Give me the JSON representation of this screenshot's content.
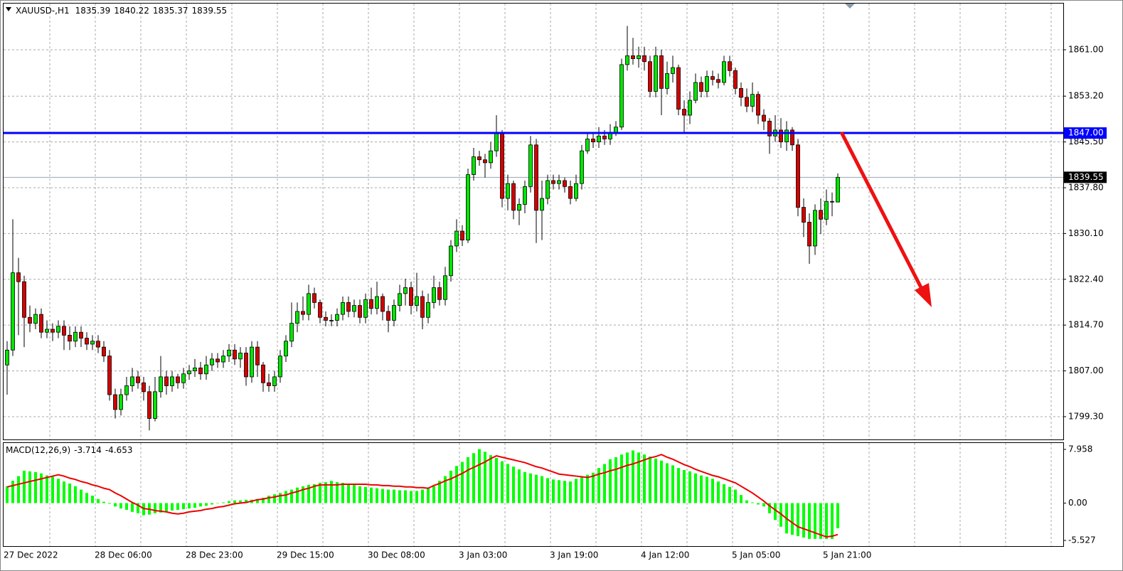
{
  "chart_data": [
    {
      "type": "candlestick",
      "title": "XAUUSD-,H1",
      "categories": [
        "27 Dec 2022",
        null,
        null,
        null,
        null,
        null,
        null,
        null,
        null,
        null,
        null,
        null,
        null,
        null,
        null,
        null,
        "28 Dec 06:00",
        null,
        null,
        null,
        null,
        null,
        null,
        null,
        null,
        null,
        null,
        null,
        null,
        null,
        null,
        null,
        "28 Dec 23:00",
        null,
        null,
        null,
        null,
        null,
        null,
        null,
        null,
        null,
        null,
        null,
        null,
        null,
        null,
        null,
        "29 Dec 15:00",
        null,
        null,
        null,
        null,
        null,
        null,
        null,
        null,
        null,
        null,
        null,
        null,
        null,
        null,
        null,
        "30 Dec 08:00",
        null,
        null,
        null,
        null,
        null,
        null,
        null,
        null,
        null,
        null,
        null,
        null,
        null,
        null,
        null,
        "3 Jan 03:00",
        null,
        null,
        null,
        null,
        null,
        null,
        null,
        null,
        null,
        null,
        null,
        null,
        null,
        null,
        null,
        "3 Jan 19:00",
        null,
        null,
        null,
        null,
        null,
        null,
        null,
        null,
        null,
        null,
        null,
        null,
        null,
        null,
        null,
        "4 Jan 12:00",
        null,
        null,
        null,
        null,
        null,
        null,
        null,
        null,
        null,
        null,
        null,
        null,
        null,
        null,
        null,
        "5 Jan 05:00",
        null,
        null,
        null,
        null,
        null,
        null,
        null,
        null,
        null,
        null,
        null,
        null,
        null,
        null,
        null,
        "5 Jan 21:00",
        null,
        null
      ],
      "open": [
        1808.0,
        1810.5,
        1823.5,
        1822.0,
        1816.0,
        1815.0,
        1816.5,
        1813.5,
        1814.0,
        1813.5,
        1814.5,
        1813.0,
        1812.0,
        1813.5,
        1812.5,
        1811.5,
        1812.0,
        1811.0,
        1809.5,
        1803.0,
        1800.5,
        1803.0,
        1804.5,
        1806.0,
        1805.0,
        1803.5,
        1799.0,
        1803.5,
        1806.0,
        1804.5,
        1806.0,
        1805.0,
        1806.5,
        1807.0,
        1807.5,
        1806.5,
        1808.0,
        1809.0,
        1808.5,
        1809.5,
        1810.5,
        1809.0,
        1810.0,
        1806.0,
        1811.0,
        1808.0,
        1805.0,
        1804.5,
        1806.0,
        1809.5,
        1812.0,
        1815.0,
        1817.0,
        1816.5,
        1820.0,
        1818.5,
        1816.0,
        1815.5,
        1815.5,
        1816.5,
        1818.5,
        1817.0,
        1818.0,
        1816.0,
        1819.0,
        1817.5,
        1819.5,
        1817.0,
        1815.5,
        1818.0,
        1820.0,
        1821.0,
        1818.0,
        1819.5,
        1816.0,
        1818.5,
        1821.0,
        1819.0,
        1823.0,
        1828.0,
        1830.5,
        1829.0,
        1840.0,
        1843.0,
        1842.5,
        1842.0,
        1844.0,
        1847.0,
        1836.0,
        1838.5,
        1834.0,
        1835.0,
        1838.0,
        1845.0,
        1834.0,
        1836.0,
        1839.0,
        1838.5,
        1839.0,
        1838.0,
        1836.0,
        1838.5,
        1844.0,
        1846.0,
        1845.5,
        1846.5,
        1846.0,
        1847.0,
        1848.0,
        1858.5,
        1860.0,
        1859.5,
        1860.0,
        1859.0,
        1854.0,
        1860.0,
        1854.5,
        1857.0,
        1858.0,
        1851.0,
        1850.0,
        1852.5,
        1855.5,
        1854.0,
        1856.5,
        1856.0,
        1855.5,
        1859.0,
        1857.5,
        1854.5,
        1853.0,
        1851.5,
        1853.5,
        1850.0,
        1849.0,
        1846.5,
        1847.5,
        1845.5,
        1847.5,
        1845.0,
        1834.5,
        1832.0,
        1828.0,
        1834.0,
        1832.5,
        1835.5,
        1835.39
      ],
      "high": [
        1812.0,
        1832.5,
        1826.0,
        1823.0,
        1818.0,
        1817.5,
        1817.5,
        1815.5,
        1815.0,
        1815.5,
        1815.5,
        1814.5,
        1814.5,
        1814.5,
        1813.5,
        1813.0,
        1813.0,
        1812.0,
        1810.5,
        1804.0,
        1804.0,
        1806.0,
        1807.5,
        1807.0,
        1806.0,
        1804.5,
        1806.0,
        1809.5,
        1807.0,
        1807.0,
        1806.5,
        1807.5,
        1808.0,
        1809.0,
        1808.5,
        1809.5,
        1810.0,
        1810.0,
        1810.5,
        1811.5,
        1811.5,
        1811.0,
        1811.0,
        1812.0,
        1812.0,
        1808.5,
        1806.5,
        1807.0,
        1810.5,
        1813.0,
        1818.5,
        1818.5,
        1819.5,
        1821.5,
        1821.0,
        1819.0,
        1817.0,
        1816.5,
        1817.5,
        1819.5,
        1819.5,
        1819.0,
        1819.0,
        1820.0,
        1821.0,
        1822.0,
        1820.0,
        1818.0,
        1819.0,
        1821.5,
        1822.5,
        1822.0,
        1823.5,
        1820.5,
        1820.0,
        1823.0,
        1822.0,
        1824.5,
        1829.0,
        1832.5,
        1831.5,
        1841.0,
        1844.5,
        1844.0,
        1843.5,
        1845.5,
        1850.0,
        1847.5,
        1840.0,
        1839.0,
        1836.0,
        1839.0,
        1846.5,
        1846.0,
        1839.0,
        1840.0,
        1840.0,
        1840.0,
        1839.5,
        1839.0,
        1840.0,
        1845.0,
        1847.0,
        1847.0,
        1848.0,
        1847.5,
        1848.5,
        1849.0,
        1859.5,
        1865.0,
        1863.0,
        1861.5,
        1861.5,
        1860.0,
        1861.5,
        1861.0,
        1859.0,
        1860.0,
        1858.5,
        1852.5,
        1854.0,
        1857.0,
        1856.5,
        1857.5,
        1857.5,
        1857.0,
        1860.0,
        1860.0,
        1858.0,
        1855.5,
        1854.5,
        1855.5,
        1854.0,
        1851.0,
        1849.5,
        1850.0,
        1849.5,
        1849.0,
        1848.0,
        1846.0,
        1836.0,
        1833.5,
        1835.0,
        1836.0,
        1837.5,
        1837.0,
        1840.22
      ],
      "low": [
        1803.0,
        1809.5,
        1813.0,
        1811.0,
        1813.5,
        1814.0,
        1812.5,
        1812.5,
        1812.0,
        1812.5,
        1810.5,
        1810.5,
        1811.0,
        1811.0,
        1810.5,
        1810.5,
        1810.0,
        1808.5,
        1802.0,
        1799.0,
        1799.5,
        1802.0,
        1803.5,
        1804.0,
        1802.0,
        1797.0,
        1798.5,
        1802.5,
        1803.0,
        1803.5,
        1804.0,
        1804.0,
        1805.5,
        1806.0,
        1805.5,
        1805.5,
        1807.0,
        1807.5,
        1807.5,
        1808.5,
        1808.0,
        1807.5,
        1804.5,
        1805.0,
        1806.0,
        1803.5,
        1803.5,
        1803.5,
        1805.0,
        1808.5,
        1811.0,
        1813.5,
        1815.5,
        1815.5,
        1817.5,
        1815.0,
        1814.5,
        1814.5,
        1814.5,
        1815.5,
        1816.0,
        1816.0,
        1815.0,
        1815.0,
        1816.5,
        1816.5,
        1815.5,
        1813.5,
        1814.5,
        1817.0,
        1818.0,
        1816.5,
        1817.0,
        1814.0,
        1815.0,
        1817.5,
        1818.0,
        1818.0,
        1822.0,
        1827.0,
        1828.0,
        1828.5,
        1839.0,
        1841.5,
        1839.5,
        1841.0,
        1843.0,
        1834.5,
        1834.0,
        1832.5,
        1831.5,
        1833.5,
        1837.0,
        1828.5,
        1829.0,
        1835.0,
        1837.5,
        1837.5,
        1837.0,
        1835.0,
        1835.5,
        1837.5,
        1843.5,
        1844.5,
        1844.5,
        1845.0,
        1845.0,
        1846.5,
        1847.5,
        1857.5,
        1858.5,
        1858.0,
        1857.5,
        1853.0,
        1853.0,
        1850.0,
        1853.5,
        1855.5,
        1850.0,
        1847.0,
        1848.5,
        1852.0,
        1853.0,
        1853.0,
        1855.0,
        1854.5,
        1855.0,
        1856.5,
        1853.5,
        1851.5,
        1850.5,
        1850.5,
        1848.5,
        1847.5,
        1843.5,
        1845.5,
        1844.5,
        1844.0,
        1844.0,
        1833.0,
        1829.5,
        1825.0,
        1826.5,
        1830.0,
        1831.5,
        1833.0,
        1835.37
      ],
      "close": [
        1810.5,
        1823.5,
        1822.0,
        1816.0,
        1815.0,
        1816.5,
        1813.5,
        1814.0,
        1813.5,
        1814.5,
        1813.0,
        1812.0,
        1813.5,
        1812.5,
        1811.5,
        1812.0,
        1811.0,
        1809.5,
        1803.0,
        1800.5,
        1803.0,
        1804.5,
        1806.0,
        1805.0,
        1803.5,
        1799.0,
        1803.5,
        1806.0,
        1804.5,
        1806.0,
        1805.0,
        1806.5,
        1807.0,
        1807.5,
        1806.5,
        1808.0,
        1809.0,
        1808.5,
        1809.5,
        1810.5,
        1809.0,
        1810.0,
        1806.0,
        1811.0,
        1808.0,
        1805.0,
        1804.5,
        1806.0,
        1809.5,
        1812.0,
        1815.0,
        1817.0,
        1816.5,
        1820.0,
        1818.5,
        1816.0,
        1815.5,
        1815.5,
        1816.5,
        1818.5,
        1817.0,
        1818.0,
        1816.0,
        1819.0,
        1817.5,
        1819.5,
        1817.0,
        1815.5,
        1818.0,
        1820.0,
        1821.0,
        1818.0,
        1819.5,
        1816.0,
        1818.5,
        1821.0,
        1819.0,
        1823.0,
        1828.0,
        1830.5,
        1829.0,
        1840.0,
        1843.0,
        1842.5,
        1842.0,
        1844.0,
        1847.0,
        1836.0,
        1838.5,
        1834.0,
        1835.0,
        1838.0,
        1845.0,
        1834.0,
        1836.0,
        1839.0,
        1838.5,
        1839.0,
        1838.0,
        1836.0,
        1838.5,
        1844.0,
        1846.0,
        1845.5,
        1846.5,
        1846.0,
        1847.0,
        1848.0,
        1858.5,
        1860.0,
        1859.5,
        1860.0,
        1859.0,
        1854.0,
        1860.0,
        1854.5,
        1857.0,
        1858.0,
        1851.0,
        1850.0,
        1852.5,
        1855.5,
        1854.0,
        1856.5,
        1856.0,
        1855.5,
        1859.0,
        1857.5,
        1854.5,
        1853.0,
        1851.5,
        1853.5,
        1850.0,
        1849.0,
        1846.5,
        1847.5,
        1845.5,
        1847.5,
        1845.0,
        1834.5,
        1832.0,
        1828.0,
        1834.0,
        1832.5,
        1835.5,
        1835.39,
        1839.55
      ],
      "up_color": "#00e600",
      "down_color": "#d40000",
      "ylim": [
        1795.47,
        1868.77
      ],
      "yticks": [
        {
          "value": 1861,
          "label": "1861.00"
        },
        {
          "value": 1853.2,
          "label": "1853.20"
        },
        {
          "value": 1845.5,
          "label": "1845.50"
        },
        {
          "value": 1837.8,
          "label": "1837.80"
        },
        {
          "value": 1830.1,
          "label": "1830.10"
        },
        {
          "value": 1822.4,
          "label": "1822.40"
        },
        {
          "value": 1814.7,
          "label": "1814.70"
        },
        {
          "value": 1807,
          "label": "1807.00"
        },
        {
          "value": 1799.3,
          "label": "1799.30"
        }
      ],
      "grid": true,
      "hlines": [
        {
          "value": 1847,
          "label": "1847.00",
          "color": "#0000ff"
        }
      ]
    },
    {
      "type": "macd",
      "title": "MACD(12,26,9)",
      "histogram": {
        "color": "#00ff00",
        "values": [
          2.5,
          3.3,
          4.0,
          4.8,
          4.7,
          4.6,
          4.4,
          4.1,
          3.9,
          3.6,
          3.2,
          2.9,
          2.5,
          2.0,
          1.5,
          1.1,
          0.6,
          0.2,
          -0.1,
          -0.5,
          -0.8,
          -1.0,
          -1.3,
          -1.5,
          -1.8,
          -1.7,
          -1.5,
          -1.4,
          -1.2,
          -1.1,
          -1.0,
          -0.9,
          -0.8,
          -0.7,
          -0.5,
          -0.4,
          -0.2,
          0.0,
          0.1,
          0.3,
          0.4,
          0.4,
          0.5,
          0.5,
          0.6,
          0.8,
          1.1,
          1.3,
          1.5,
          1.8,
          2.0,
          2.3,
          2.5,
          2.7,
          2.8,
          3.0,
          3.1,
          3.3,
          3.1,
          3.0,
          2.8,
          2.7,
          2.5,
          2.4,
          2.3,
          2.2,
          2.1,
          2.0,
          2.0,
          1.9,
          1.9,
          1.8,
          1.8,
          2.0,
          2.3,
          2.5,
          3.3,
          4.0,
          4.8,
          5.5,
          6.1,
          6.8,
          7.4,
          8.0,
          7.6,
          7.1,
          6.7,
          6.2,
          5.8,
          5.4,
          5.0,
          4.6,
          4.4,
          4.2,
          4.0,
          3.7,
          3.5,
          3.4,
          3.3,
          3.2,
          3.6,
          3.9,
          4.2,
          4.5,
          5.2,
          5.8,
          6.5,
          6.8,
          7.2,
          7.5,
          7.8,
          7.5,
          7.2,
          6.9,
          6.6,
          6.3,
          5.9,
          5.6,
          5.2,
          4.9,
          4.7,
          4.4,
          4.1,
          3.9,
          3.6,
          3.2,
          2.8,
          2.4,
          2.0,
          1.2,
          0.4,
          0.1,
          -0.2,
          -0.5,
          -1.5,
          -2.5,
          -3.5,
          -4.5,
          -4.7,
          -4.9,
          -5.1,
          -5.3,
          -5.3,
          -5.3,
          -5.3,
          -5.3,
          -3.714
        ]
      },
      "signal": {
        "color": "#ee0000",
        "values": [
          2.4,
          2.6,
          2.8,
          3.0,
          3.2,
          3.4,
          3.6,
          3.8,
          4.0,
          4.2,
          4.0,
          3.7,
          3.5,
          3.2,
          3.0,
          2.7,
          2.5,
          2.2,
          2.0,
          1.5,
          1.1,
          0.6,
          0.1,
          -0.3,
          -0.8,
          -0.9,
          -1.1,
          -1.2,
          -1.3,
          -1.5,
          -1.6,
          -1.5,
          -1.3,
          -1.2,
          -1.1,
          -0.9,
          -0.8,
          -0.6,
          -0.5,
          -0.3,
          -0.1,
          0.0,
          0.1,
          0.3,
          0.5,
          0.6,
          0.8,
          0.9,
          1.1,
          1.2,
          1.5,
          1.7,
          2.0,
          2.2,
          2.5,
          2.7,
          2.7,
          2.7,
          2.7,
          2.8,
          2.8,
          2.8,
          2.8,
          2.8,
          2.7,
          2.7,
          2.6,
          2.6,
          2.5,
          2.5,
          2.4,
          2.4,
          2.3,
          2.3,
          2.2,
          2.6,
          2.9,
          3.3,
          3.6,
          4.0,
          4.4,
          4.9,
          5.3,
          5.7,
          6.1,
          6.6,
          7.0,
          6.8,
          6.6,
          6.4,
          6.2,
          6.0,
          5.7,
          5.4,
          5.2,
          4.9,
          4.6,
          4.3,
          4.2,
          4.1,
          4.0,
          3.9,
          3.8,
          4.0,
          4.3,
          4.5,
          4.8,
          5.0,
          5.3,
          5.6,
          5.8,
          6.1,
          6.4,
          6.7,
          6.9,
          7.2,
          6.8,
          6.5,
          6.1,
          5.7,
          5.4,
          5.0,
          4.7,
          4.4,
          4.1,
          3.9,
          3.6,
          3.3,
          3.0,
          2.5,
          2.0,
          1.5,
          0.9,
          0.3,
          -0.4,
          -1.0,
          -1.6,
          -2.3,
          -2.9,
          -3.5,
          -3.8,
          -4.1,
          -4.4,
          -4.7,
          -5.0,
          -4.9,
          -4.653
        ]
      },
      "ylim": [
        -6.37,
        9.01
      ],
      "yticks": [
        7.958,
        {
          "value": 0,
          "label": "0.00"
        },
        -5.527
      ]
    }
  ]
}
